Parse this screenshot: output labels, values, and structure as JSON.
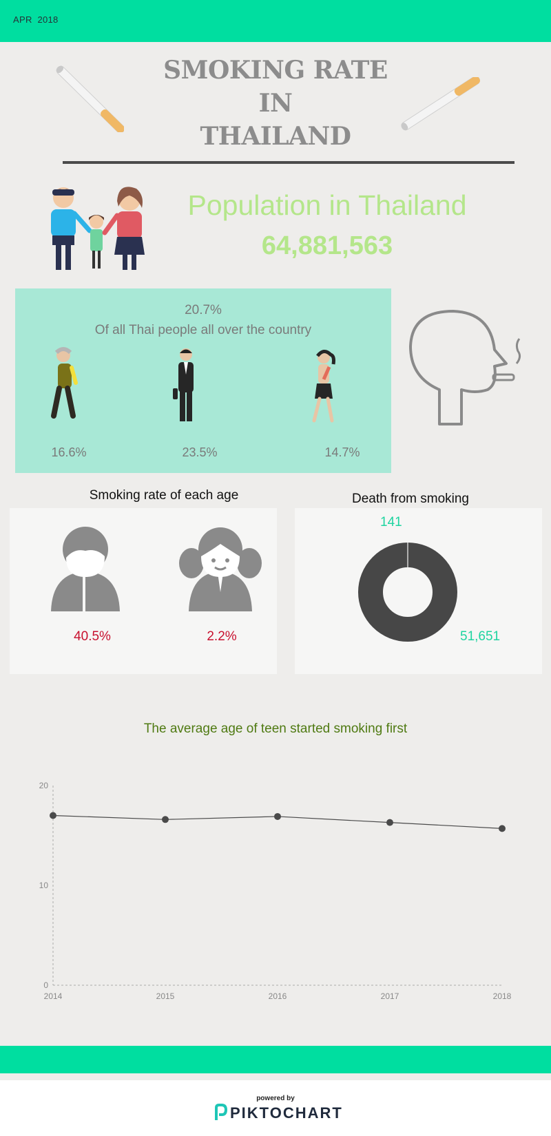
{
  "header": {
    "date": "APR  2018"
  },
  "title": {
    "line1": "SMOKING RATE",
    "line2": "IN",
    "line3": "THAILAND"
  },
  "population": {
    "label": "Population in Thailand",
    "value": "64,881,563"
  },
  "overall": {
    "rate": "20.7%",
    "subtitle": "Of all Thai people all over the country",
    "groups": [
      "16.6%",
      "23.5%",
      "14.7%"
    ]
  },
  "age_section": {
    "title": "Smoking rate of each age",
    "male": "40.5%",
    "female": "2.2%"
  },
  "death_section": {
    "title": "Death from smoking",
    "small": "141",
    "large": "51,651"
  },
  "chart_data": {
    "type": "line",
    "title": "The average age of teen started smoking first",
    "x": [
      "2014",
      "2015",
      "2016",
      "2017",
      "2018"
    ],
    "values": [
      17.0,
      16.6,
      16.9,
      16.3,
      15.7
    ],
    "yticks": [
      0,
      10,
      20
    ],
    "ylim": [
      0,
      20
    ],
    "grid": false
  },
  "footer": {
    "powered": "powered by",
    "brand": "PIKTOCHART"
  },
  "colors": {
    "accent": "#00dea0",
    "panel": "#a8e8d6",
    "pop_text": "#b4e68a",
    "highlight": "#c8102e"
  }
}
